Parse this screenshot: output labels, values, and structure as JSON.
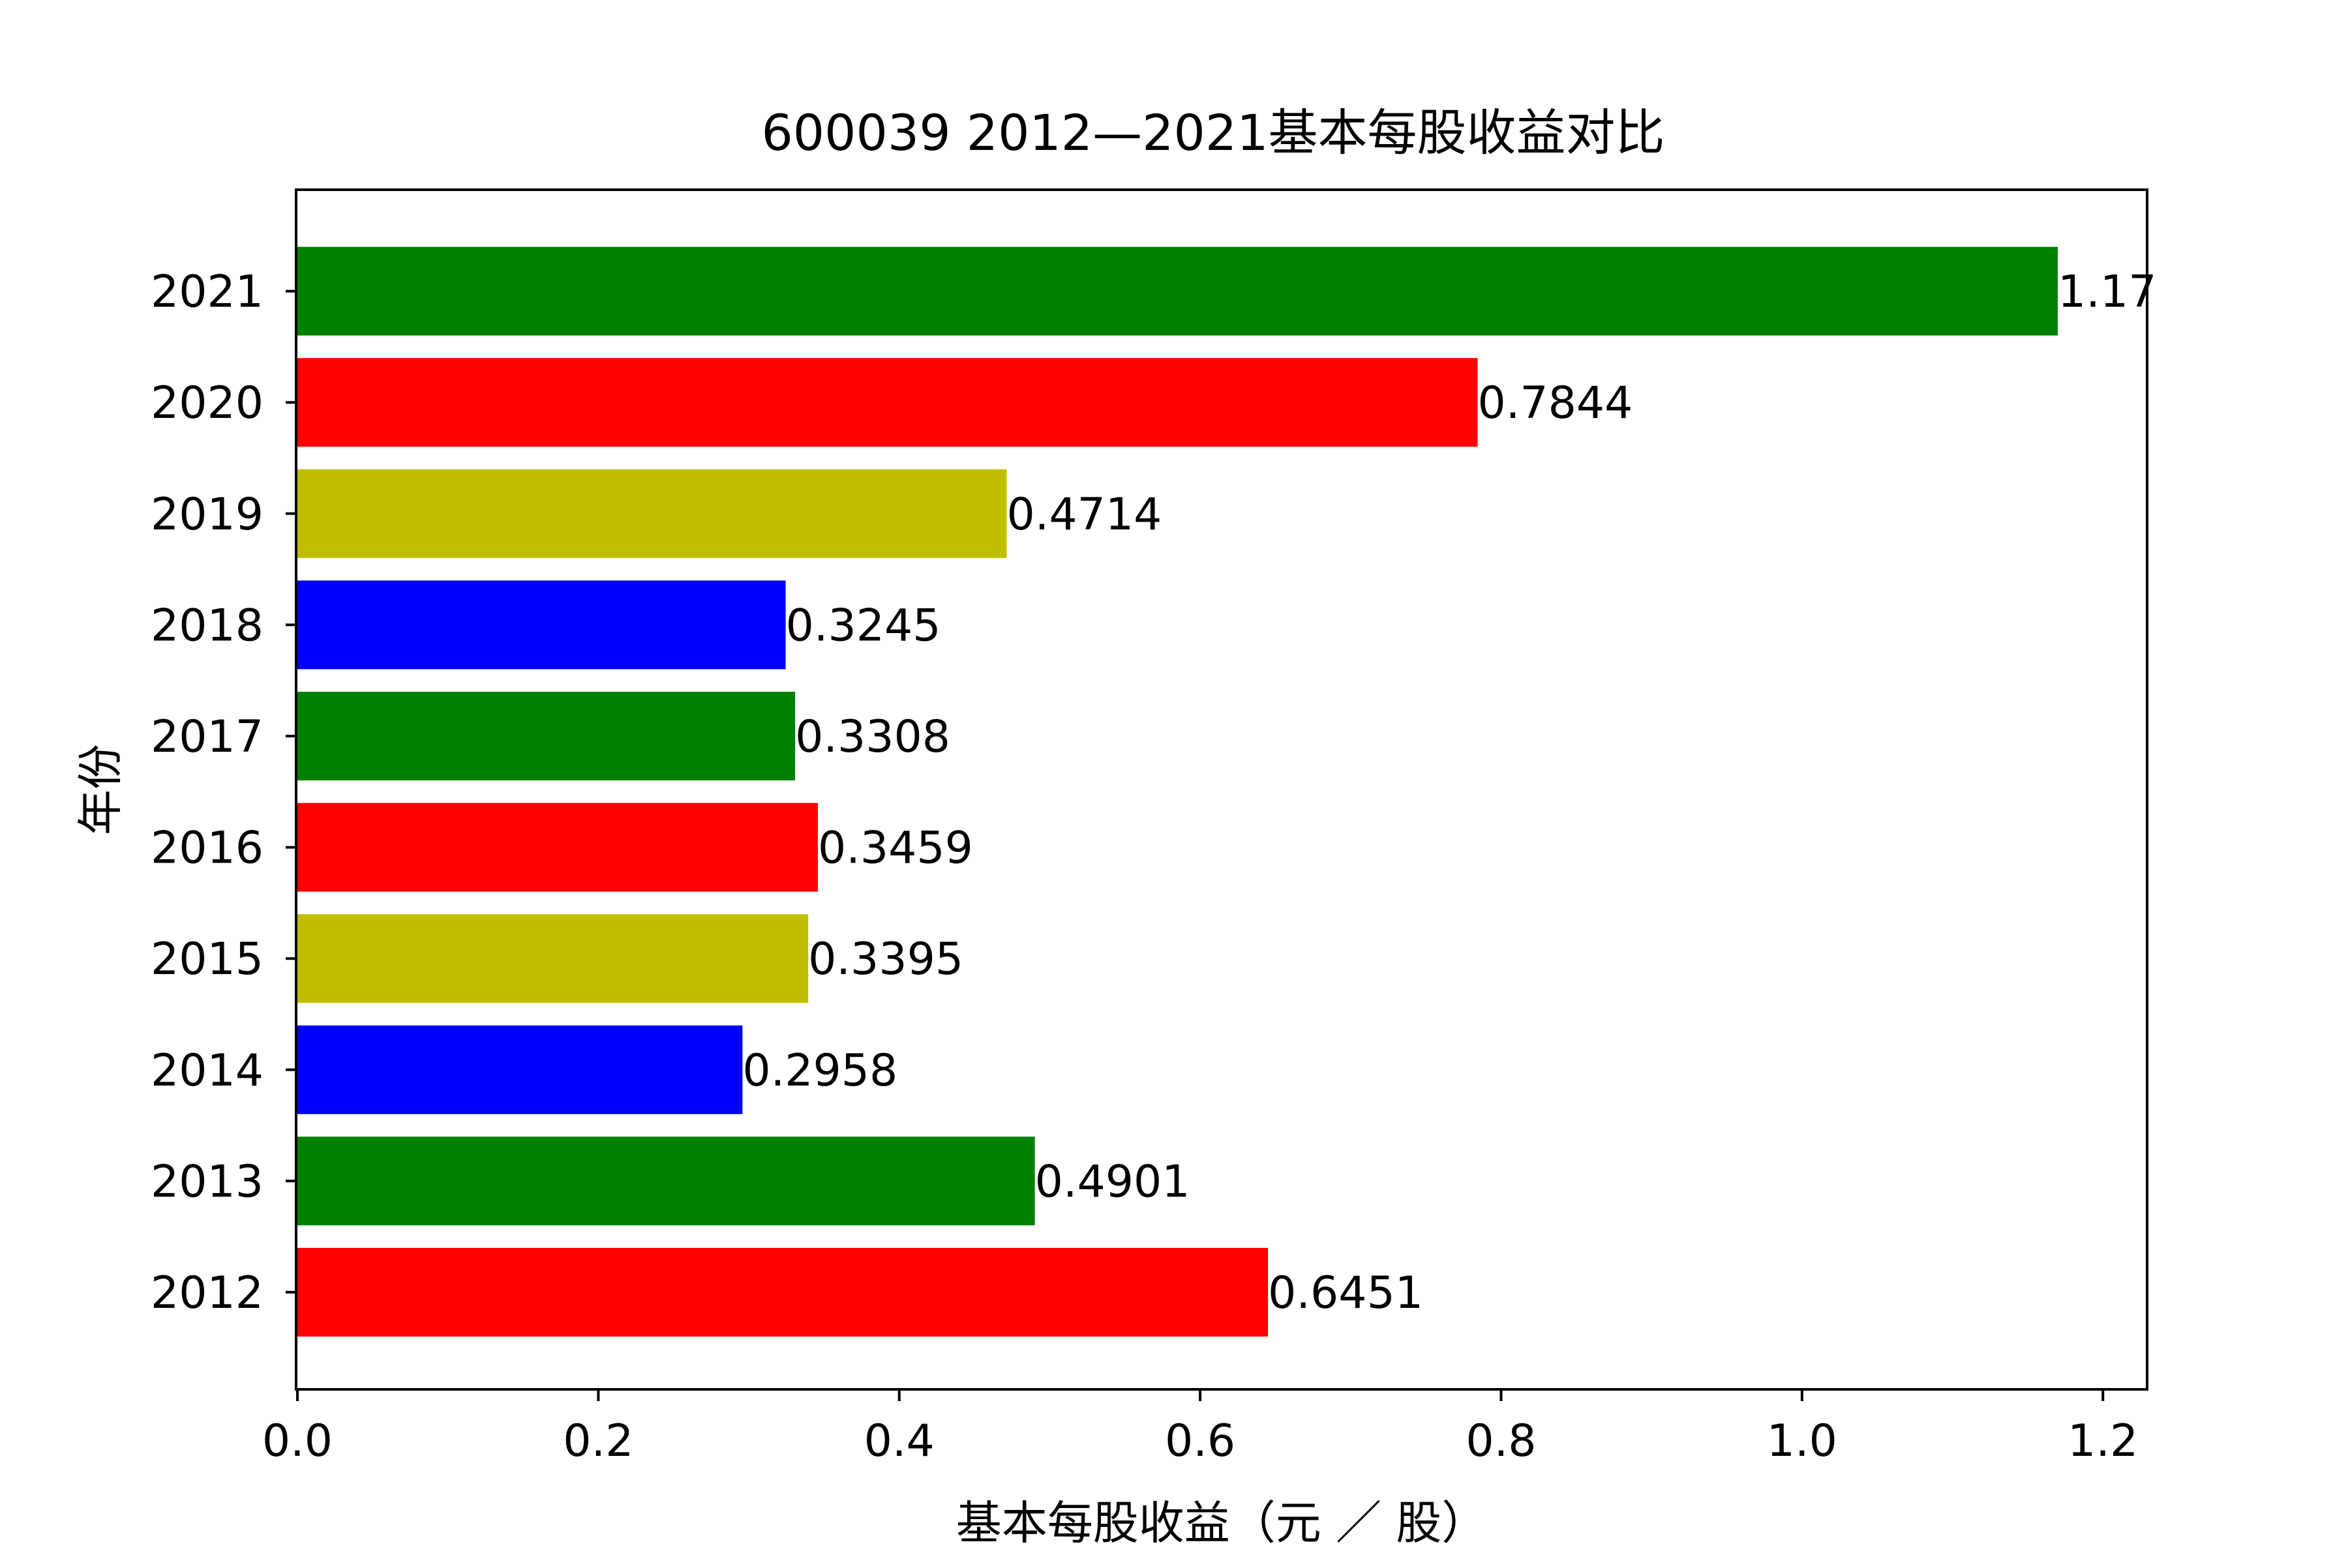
{
  "chart_data": {
    "type": "bar",
    "orientation": "horizontal",
    "title": "600039 2012—2021基本每股收益对比",
    "xlabel": "基本每股收益（元 ／ 股）",
    "ylabel": "年份",
    "categories": [
      "2012",
      "2013",
      "2014",
      "2015",
      "2016",
      "2017",
      "2018",
      "2019",
      "2020",
      "2021"
    ],
    "values": [
      0.6451,
      0.4901,
      0.2958,
      0.3395,
      0.3459,
      0.3308,
      0.3245,
      0.4714,
      0.7844,
      1.17
    ],
    "value_labels": [
      "0.6451",
      "0.4901",
      "0.2958",
      "0.3395",
      "0.3459",
      "0.3308",
      "0.3245",
      "0.4714",
      "0.7844",
      "1.17"
    ],
    "colors": [
      "#ff0000",
      "#008000",
      "#0000ff",
      "#bfbf00",
      "#ff0000",
      "#008000",
      "#0000ff",
      "#bfbf00",
      "#ff0000",
      "#008000"
    ],
    "xticks": [
      "0.0",
      "0.2",
      "0.4",
      "0.6",
      "0.8",
      "1.0",
      "1.2"
    ],
    "xlim": [
      0,
      1.2285
    ],
    "grid": false,
    "legend": "none"
  }
}
